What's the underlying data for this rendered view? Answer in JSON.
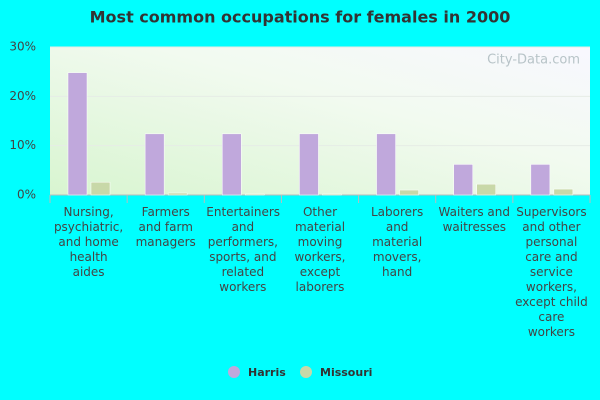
{
  "chart_data": {
    "type": "bar",
    "title": "Most common occupations for females in 2000",
    "watermark": "City-Data.com",
    "categories": [
      "Nursing, psychiatric, and home health aides",
      "Farmers and farm managers",
      "Entertainers and performers, sports, and related workers",
      "Other material moving workers, except laborers",
      "Laborers and material movers, hand",
      "Waiters and waitresses",
      "Supervisors and other personal care and service workers, except child care workers"
    ],
    "series": [
      {
        "name": "Harris",
        "color": "#c0a8dc",
        "values": [
          24.8,
          12.4,
          12.4,
          12.4,
          12.4,
          6.2,
          6.2
        ]
      },
      {
        "name": "Missouri",
        "color": "#c8d8a8",
        "values": [
          2.6,
          0.4,
          0.2,
          0.2,
          1.0,
          2.2,
          1.2
        ]
      }
    ],
    "ylim": [
      0,
      30
    ],
    "yticks": [
      {
        "value": 0,
        "label": "0%"
      },
      {
        "value": 10,
        "label": "10%"
      },
      {
        "value": 20,
        "label": "20%"
      },
      {
        "value": 30,
        "label": "30%"
      }
    ],
    "grid": true
  }
}
